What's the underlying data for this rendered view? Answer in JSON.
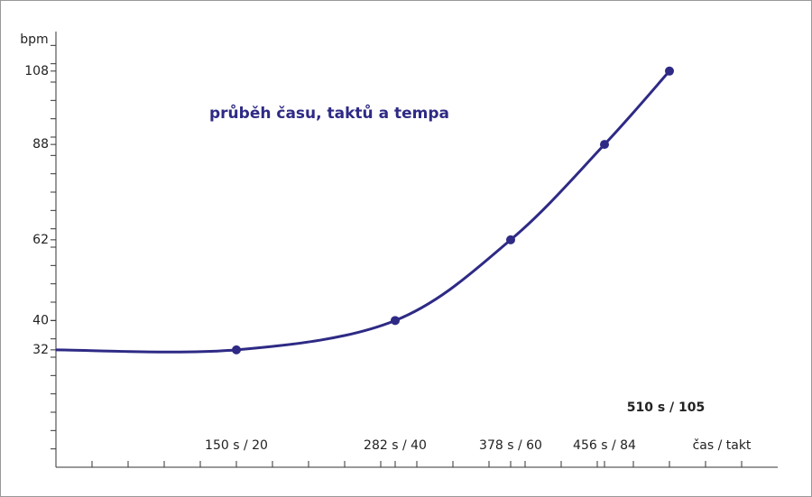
{
  "chart_data": {
    "type": "line",
    "title": "průběh času, taktů a tempa",
    "y_label": "bpm",
    "x_label": "čas / takt",
    "x": [
      0,
      150,
      282,
      378,
      456,
      510
    ],
    "series": [
      {
        "color": "#2e2a85",
        "values": [
          32,
          32,
          40,
          62,
          88,
          108
        ]
      }
    ],
    "end_label": "510 s / 105",
    "xlim": [
      0,
      600
    ],
    "ylim": [
      0,
      120
    ],
    "xticks": [
      {
        "value": 150,
        "label": "150 s / 20"
      },
      {
        "value": 282,
        "label": "282 s / 40"
      },
      {
        "value": 378,
        "label": "378 s / 60"
      },
      {
        "value": 456,
        "label": "456 s / 84"
      }
    ],
    "x_minor_ticks": [
      30,
      60,
      90,
      120,
      150,
      180,
      210,
      240,
      270,
      300,
      330,
      360,
      390,
      420,
      450,
      480,
      510,
      540,
      570
    ],
    "yticks": [
      32,
      40,
      62,
      88,
      108
    ],
    "y_minor_ticks": [
      5,
      10,
      15,
      20,
      25,
      30,
      35,
      40,
      45,
      50,
      55,
      60,
      65,
      70,
      75,
      80,
      85,
      90,
      95,
      100,
      105,
      110,
      115
    ]
  }
}
